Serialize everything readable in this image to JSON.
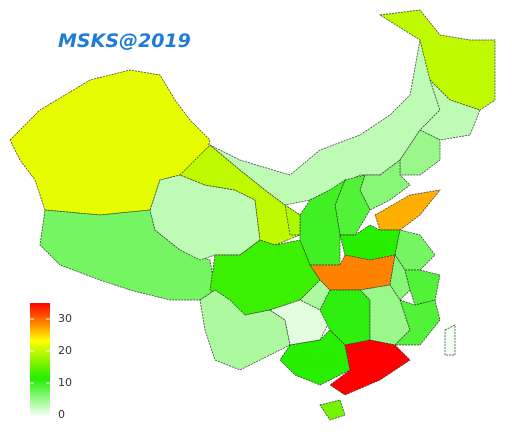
{
  "chart_data": {
    "type": "map",
    "title": "MSKS@2019",
    "values": [
      22,
      7,
      3,
      20,
      3,
      20,
      3,
      5,
      6,
      9,
      10,
      19,
      27,
      12,
      29,
      7,
      6,
      9,
      13,
      4,
      4,
      1,
      11,
      5,
      9,
      12,
      35,
      16,
      0
    ],
    "clim": [
      0,
      35
    ],
    "ticks": [
      0,
      10,
      20,
      30
    ],
    "colors": [
      "#f4fff4",
      "#22ee00",
      "#ffff00",
      "#ff0000"
    ]
  }
}
